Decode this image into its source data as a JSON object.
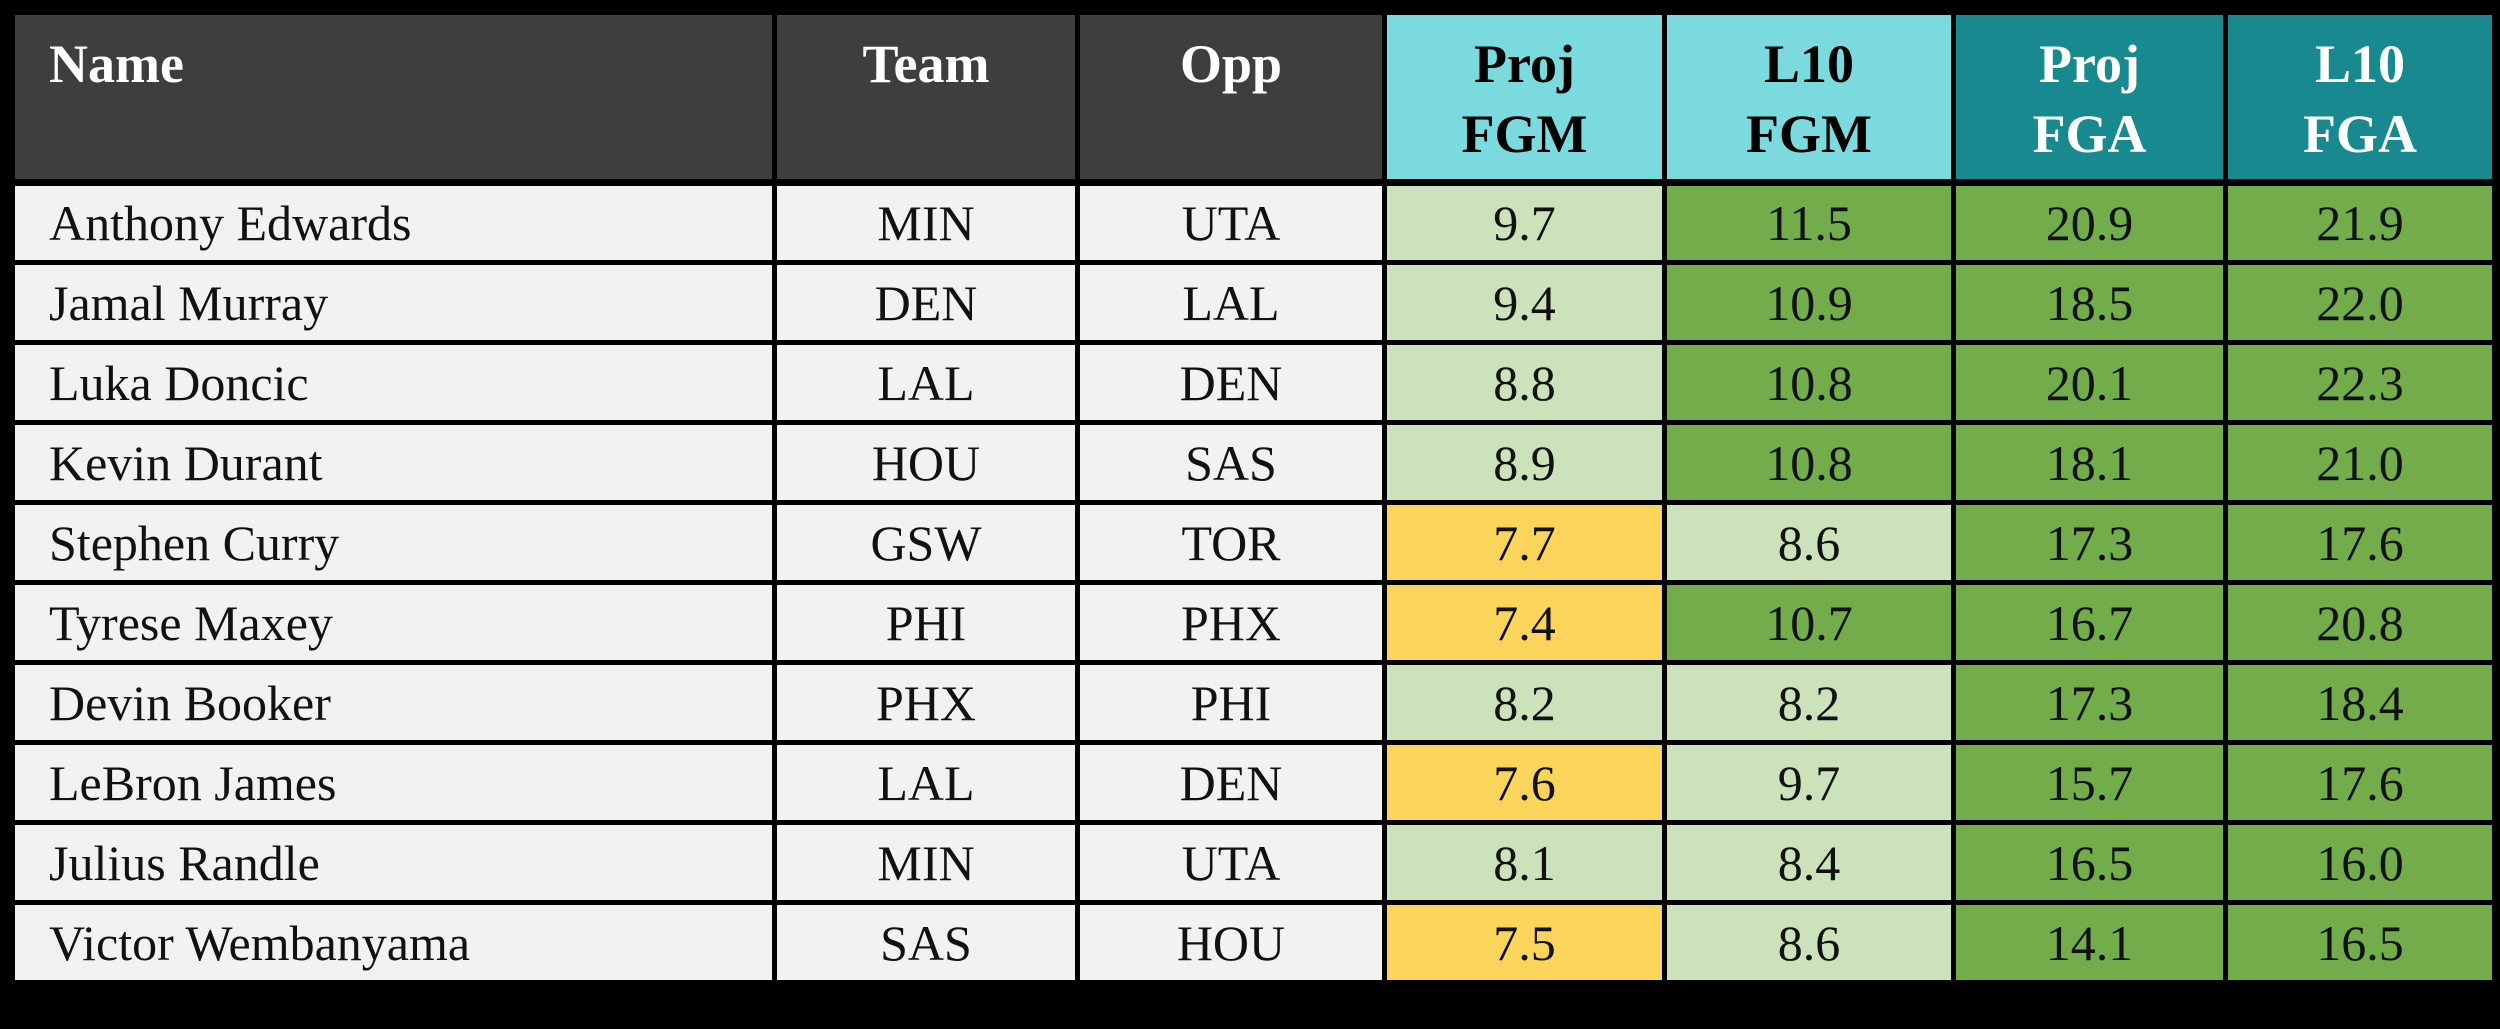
{
  "colors": {
    "page_bg": "#000000",
    "border": "#000000",
    "header_dark": "#3F3E3E",
    "header_cyan": "#7BDADD",
    "header_teal": "#17898F",
    "row_bg": "#F2F2F2",
    "cell_light_green": "#CBE2BA",
    "cell_mid_green": "#72AC4B",
    "cell_gold": "#FBD45C",
    "header_text_light": "#FFFFFF",
    "text_dark": "#111111"
  },
  "table": {
    "columns": [
      {
        "id": "name",
        "line1": "Name",
        "line2": "",
        "group": "dark"
      },
      {
        "id": "team",
        "line1": "Team",
        "line2": "",
        "group": "dark"
      },
      {
        "id": "opp",
        "line1": "Opp",
        "line2": "",
        "group": "dark"
      },
      {
        "id": "proj_fgm",
        "line1": "Proj",
        "line2": "FGM",
        "group": "cyan"
      },
      {
        "id": "l10_fgm",
        "line1": "L10",
        "line2": "FGM",
        "group": "cyan"
      },
      {
        "id": "proj_fga",
        "line1": "Proj",
        "line2": "FGA",
        "group": "teal"
      },
      {
        "id": "l10_fga",
        "line1": "L10",
        "line2": "FGA",
        "group": "teal"
      }
    ],
    "rows": [
      {
        "name": "Anthony Edwards",
        "team": "MIN",
        "opp": "UTA",
        "stats": [
          {
            "v": "9.7",
            "tone": "light"
          },
          {
            "v": "11.5",
            "tone": "mid"
          },
          {
            "v": "20.9",
            "tone": "mid"
          },
          {
            "v": "21.9",
            "tone": "mid"
          }
        ]
      },
      {
        "name": "Jamal Murray",
        "team": "DEN",
        "opp": "LAL",
        "stats": [
          {
            "v": "9.4",
            "tone": "light"
          },
          {
            "v": "10.9",
            "tone": "mid"
          },
          {
            "v": "18.5",
            "tone": "mid"
          },
          {
            "v": "22.0",
            "tone": "mid"
          }
        ]
      },
      {
        "name": "Luka Doncic",
        "team": "LAL",
        "opp": "DEN",
        "stats": [
          {
            "v": "8.8",
            "tone": "light"
          },
          {
            "v": "10.8",
            "tone": "mid"
          },
          {
            "v": "20.1",
            "tone": "mid"
          },
          {
            "v": "22.3",
            "tone": "mid"
          }
        ]
      },
      {
        "name": "Kevin Durant",
        "team": "HOU",
        "opp": "SAS",
        "stats": [
          {
            "v": "8.9",
            "tone": "light"
          },
          {
            "v": "10.8",
            "tone": "mid"
          },
          {
            "v": "18.1",
            "tone": "mid"
          },
          {
            "v": "21.0",
            "tone": "mid"
          }
        ]
      },
      {
        "name": "Stephen Curry",
        "team": "GSW",
        "opp": "TOR",
        "stats": [
          {
            "v": "7.7",
            "tone": "gold"
          },
          {
            "v": "8.6",
            "tone": "light"
          },
          {
            "v": "17.3",
            "tone": "mid"
          },
          {
            "v": "17.6",
            "tone": "mid"
          }
        ]
      },
      {
        "name": "Tyrese Maxey",
        "team": "PHI",
        "opp": "PHX",
        "stats": [
          {
            "v": "7.4",
            "tone": "gold"
          },
          {
            "v": "10.7",
            "tone": "mid"
          },
          {
            "v": "16.7",
            "tone": "mid"
          },
          {
            "v": "20.8",
            "tone": "mid"
          }
        ]
      },
      {
        "name": "Devin Booker",
        "team": "PHX",
        "opp": "PHI",
        "stats": [
          {
            "v": "8.2",
            "tone": "light"
          },
          {
            "v": "8.2",
            "tone": "light"
          },
          {
            "v": "17.3",
            "tone": "mid"
          },
          {
            "v": "18.4",
            "tone": "mid"
          }
        ]
      },
      {
        "name": "LeBron James",
        "team": "LAL",
        "opp": "DEN",
        "stats": [
          {
            "v": "7.6",
            "tone": "gold"
          },
          {
            "v": "9.7",
            "tone": "light"
          },
          {
            "v": "15.7",
            "tone": "mid"
          },
          {
            "v": "17.6",
            "tone": "mid"
          }
        ]
      },
      {
        "name": "Julius Randle",
        "team": "MIN",
        "opp": "UTA",
        "stats": [
          {
            "v": "8.1",
            "tone": "light"
          },
          {
            "v": "8.4",
            "tone": "light"
          },
          {
            "v": "16.5",
            "tone": "mid"
          },
          {
            "v": "16.0",
            "tone": "mid"
          }
        ]
      },
      {
        "name": "Victor Wembanyama",
        "team": "SAS",
        "opp": "HOU",
        "stats": [
          {
            "v": "7.5",
            "tone": "gold"
          },
          {
            "v": "8.6",
            "tone": "light"
          },
          {
            "v": "14.1",
            "tone": "mid"
          },
          {
            "v": "16.5",
            "tone": "mid"
          }
        ]
      }
    ]
  },
  "chart_data": {
    "type": "table",
    "title": "",
    "columns": [
      "Name",
      "Team",
      "Opp",
      "Proj FGM",
      "L10 FGM",
      "Proj FGA",
      "L10 FGA"
    ],
    "rows": [
      [
        "Anthony Edwards",
        "MIN",
        "UTA",
        9.7,
        11.5,
        20.9,
        21.9
      ],
      [
        "Jamal Murray",
        "DEN",
        "LAL",
        9.4,
        10.9,
        18.5,
        22.0
      ],
      [
        "Luka Doncic",
        "LAL",
        "DEN",
        8.8,
        10.8,
        20.1,
        22.3
      ],
      [
        "Kevin Durant",
        "HOU",
        "SAS",
        8.9,
        10.8,
        18.1,
        21.0
      ],
      [
        "Stephen Curry",
        "GSW",
        "TOR",
        7.7,
        8.6,
        17.3,
        17.6
      ],
      [
        "Tyrese Maxey",
        "PHI",
        "PHX",
        7.4,
        10.7,
        16.7,
        20.8
      ],
      [
        "Devin Booker",
        "PHX",
        "PHI",
        8.2,
        8.2,
        17.3,
        18.4
      ],
      [
        "LeBron James",
        "LAL",
        "DEN",
        7.6,
        9.7,
        15.7,
        17.6
      ],
      [
        "Julius Randle",
        "MIN",
        "UTA",
        8.1,
        8.4,
        16.5,
        16.0
      ],
      [
        "Victor Wembanyama",
        "SAS",
        "HOU",
        7.5,
        8.6,
        14.1,
        16.5
      ]
    ]
  }
}
